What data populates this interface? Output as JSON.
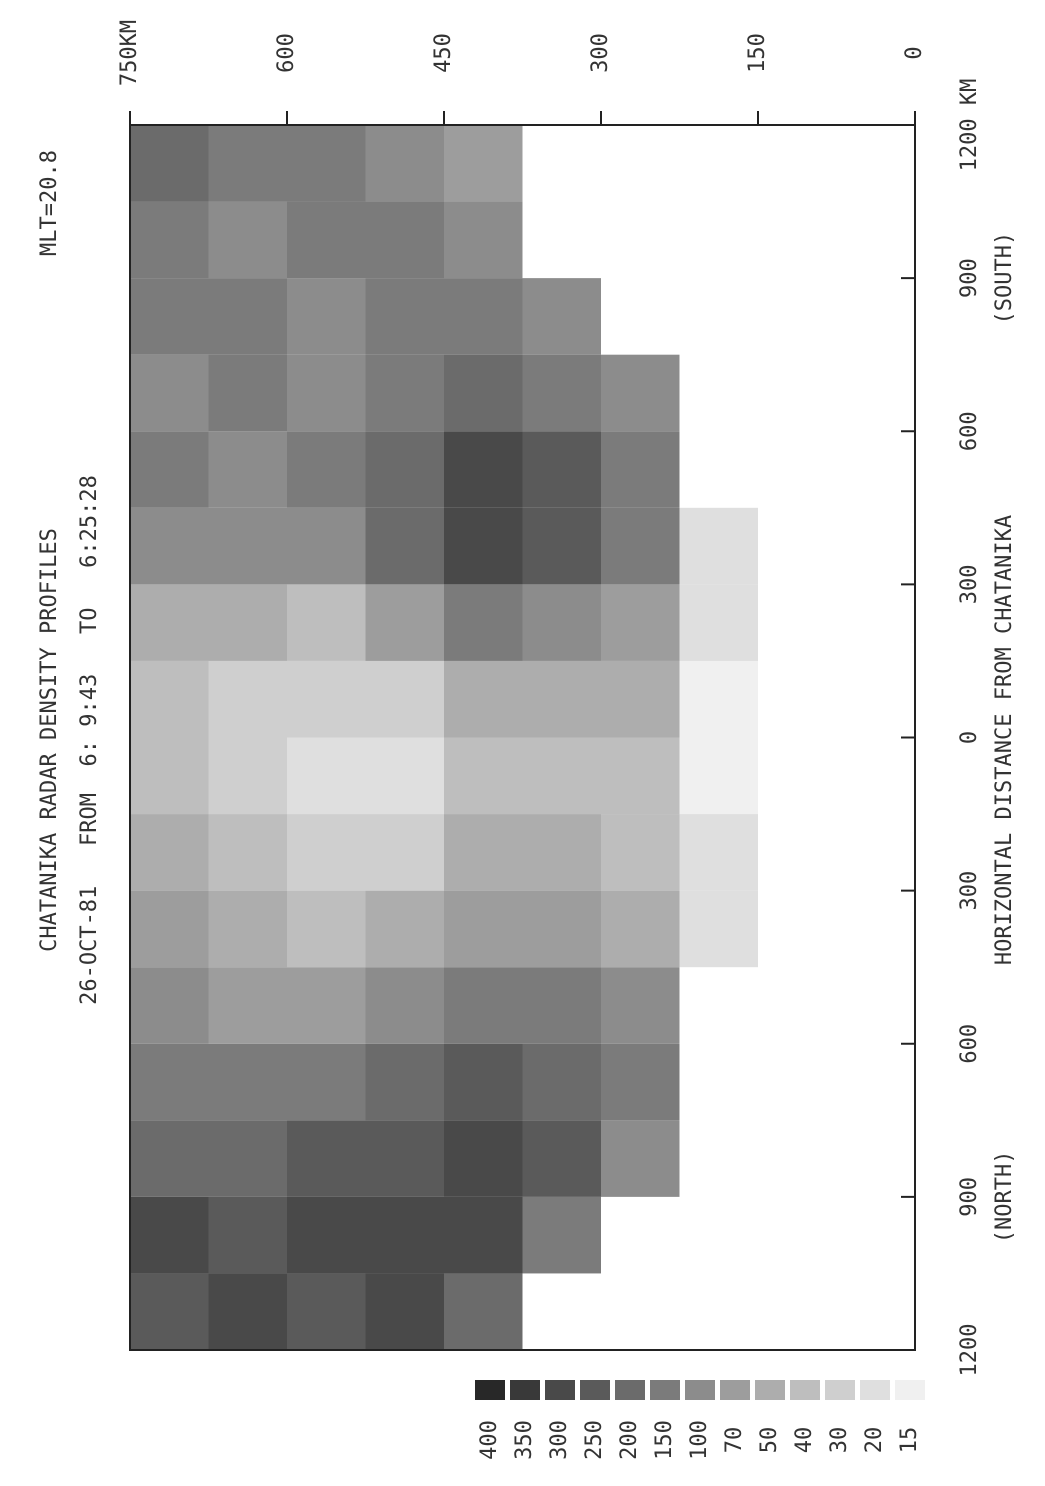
{
  "chart_data": {
    "type": "heatmap",
    "title": "CHATANIKA RADAR DENSITY PROFILES",
    "subtitle": "26-OCT-81   FROM  6: 9:43   TO   6:25:28",
    "annotation": "MLT=20.8",
    "x_label": "HORIZONTAL DISTANCE FROM CHATANIKA",
    "x_left_label": "(NORTH)",
    "x_right_label": "(SOUTH)",
    "xlim": [
      -1200,
      1200
    ],
    "ylim": [
      0,
      750
    ],
    "xticks": [
      {
        "value": -1200,
        "label": "1200"
      },
      {
        "value": -900,
        "label": "900"
      },
      {
        "value": -600,
        "label": "600"
      },
      {
        "value": -300,
        "label": "300"
      },
      0,
      300,
      600,
      900,
      {
        "value": 1200,
        "label": "1200 KM"
      }
    ],
    "yticks": [
      0,
      150,
      300,
      450,
      600,
      {
        "value": 750,
        "label": "750KM"
      }
    ],
    "xbins": [
      -1200,
      -1050,
      -900,
      -750,
      -600,
      -450,
      -300,
      -150,
      0,
      150,
      300,
      450,
      600,
      750,
      900,
      1050,
      1200
    ],
    "ybins": [
      0,
      75,
      150,
      225,
      300,
      375,
      450,
      525,
      600,
      675,
      750
    ],
    "values": [
      [
        null,
        null,
        null,
        null,
        null,
        null,
        null,
        null,
        null,
        null,
        null,
        null,
        null,
        null,
        null,
        null
      ],
      [
        null,
        null,
        null,
        null,
        null,
        null,
        null,
        null,
        null,
        null,
        null,
        null,
        null,
        null,
        null,
        null
      ],
      [
        null,
        null,
        null,
        null,
        null,
        20,
        20,
        15,
        15,
        20,
        20,
        null,
        null,
        null,
        null,
        null
      ],
      [
        null,
        null,
        100,
        150,
        100,
        50,
        40,
        40,
        50,
        70,
        150,
        150,
        100,
        null,
        null,
        null
      ],
      [
        null,
        150,
        250,
        200,
        150,
        70,
        50,
        40,
        50,
        100,
        250,
        250,
        150,
        100,
        null,
        null
      ],
      [
        200,
        300,
        300,
        250,
        150,
        70,
        50,
        40,
        50,
        150,
        300,
        300,
        200,
        150,
        100,
        70
      ],
      [
        300,
        300,
        250,
        200,
        100,
        50,
        30,
        20,
        30,
        70,
        200,
        200,
        150,
        150,
        150,
        100
      ],
      [
        250,
        300,
        250,
        150,
        70,
        40,
        30,
        20,
        30,
        40,
        100,
        150,
        100,
        100,
        150,
        150
      ],
      [
        300,
        250,
        200,
        150,
        70,
        50,
        40,
        30,
        30,
        50,
        100,
        100,
        150,
        150,
        100,
        150
      ],
      [
        250,
        300,
        200,
        150,
        100,
        70,
        50,
        40,
        40,
        50,
        100,
        150,
        100,
        150,
        150,
        200
      ]
    ],
    "colorbar_levels": [
      400,
      350,
      300,
      250,
      200,
      150,
      100,
      70,
      50,
      40,
      30,
      20,
      15
    ]
  }
}
